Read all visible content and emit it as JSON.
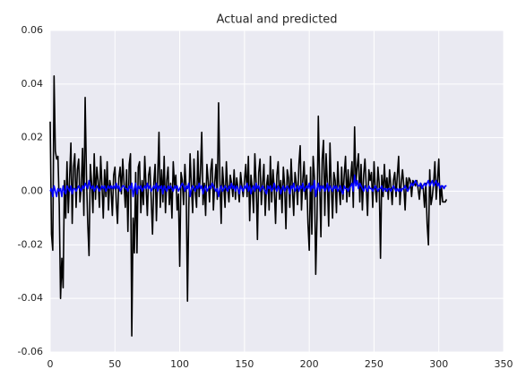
{
  "chart_data": {
    "type": "line",
    "title": "Actual and predicted",
    "x": [
      0,
      1,
      2,
      3,
      4,
      5,
      6,
      7,
      8,
      9,
      10,
      11,
      12,
      13,
      14,
      15,
      16,
      17,
      18,
      19,
      20,
      21,
      22,
      23,
      24,
      25,
      26,
      27,
      28,
      29,
      30,
      31,
      32,
      33,
      34,
      35,
      36,
      37,
      38,
      39,
      40,
      41,
      42,
      43,
      44,
      45,
      46,
      47,
      48,
      49,
      50,
      51,
      52,
      53,
      54,
      55,
      56,
      57,
      58,
      59,
      60,
      61,
      62,
      63,
      64,
      65,
      66,
      67,
      68,
      69,
      70,
      71,
      72,
      73,
      74,
      75,
      76,
      77,
      78,
      79,
      80,
      81,
      82,
      83,
      84,
      85,
      86,
      87,
      88,
      89,
      90,
      91,
      92,
      93,
      94,
      95,
      96,
      97,
      98,
      99,
      100,
      101,
      102,
      103,
      104,
      105,
      106,
      107,
      108,
      109,
      110,
      111,
      112,
      113,
      114,
      115,
      116,
      117,
      118,
      119,
      120,
      121,
      122,
      123,
      124,
      125,
      126,
      127,
      128,
      129,
      130,
      131,
      132,
      133,
      134,
      135,
      136,
      137,
      138,
      139,
      140,
      141,
      142,
      143,
      144,
      145,
      146,
      147,
      148,
      149,
      150,
      151,
      152,
      153,
      154,
      155,
      156,
      157,
      158,
      159,
      160,
      161,
      162,
      163,
      164,
      165,
      166,
      167,
      168,
      169,
      170,
      171,
      172,
      173,
      174,
      175,
      176,
      177,
      178,
      179,
      180,
      181,
      182,
      183,
      184,
      185,
      186,
      187,
      188,
      189,
      190,
      191,
      192,
      193,
      194,
      195,
      196,
      197,
      198,
      199,
      200,
      201,
      202,
      203,
      204,
      205,
      206,
      207,
      208,
      209,
      210,
      211,
      212,
      213,
      214,
      215,
      216,
      217,
      218,
      219,
      220,
      221,
      222,
      223,
      224,
      225,
      226,
      227,
      228,
      229,
      230,
      231,
      232,
      233,
      234,
      235,
      236,
      237,
      238,
      239,
      240,
      241,
      242,
      243,
      244,
      245,
      246,
      247,
      248,
      249,
      250,
      251,
      252,
      253,
      254,
      255,
      256,
      257,
      258,
      259,
      260,
      261,
      262,
      263,
      264,
      265,
      266,
      267,
      268,
      269,
      270,
      271,
      272,
      273,
      274,
      275,
      276,
      277,
      278,
      279,
      280,
      281,
      282,
      283,
      284,
      285,
      286,
      287,
      288,
      289,
      290,
      291,
      292,
      293,
      294,
      295,
      296,
      297,
      298,
      299,
      300,
      301,
      302,
      303,
      304,
      305,
      306
    ],
    "series": [
      {
        "color": "#000000",
        "values": [
          0.026,
          -0.016,
          -0.022,
          0.043,
          0.015,
          0.012,
          0.013,
          -0.005,
          -0.04,
          -0.025,
          -0.036,
          0.004,
          -0.01,
          0.011,
          -0.008,
          0.005,
          0.018,
          -0.012,
          0.009,
          0.014,
          -0.006,
          0.008,
          0.012,
          -0.004,
          0.002,
          0.016,
          -0.009,
          0.035,
          0.006,
          -0.012,
          -0.024,
          0.01,
          0.003,
          -0.008,
          0.014,
          -0.003,
          0.009,
          0.004,
          -0.006,
          0.013,
          0.002,
          -0.01,
          0.008,
          -0.002,
          0.011,
          -0.007,
          0.004,
          0.001,
          -0.009,
          0.006,
          0.009,
          -0.004,
          -0.012,
          0.005,
          0.009,
          -0.001,
          0.012,
          0.003,
          -0.006,
          0.008,
          -0.015,
          0.01,
          0.014,
          -0.054,
          -0.01,
          -0.023,
          0.007,
          -0.023,
          0.009,
          0.011,
          -0.008,
          0.004,
          -0.005,
          0.013,
          0.002,
          -0.009,
          0.006,
          0.009,
          -0.003,
          -0.016,
          0.003,
          0.01,
          -0.011,
          0.005,
          0.022,
          -0.006,
          0.008,
          -0.004,
          0.013,
          -0.008,
          0.004,
          0.009,
          -0.005,
          0.003,
          -0.01,
          0.011,
          0.002,
          0.006,
          -0.007,
          -0.001,
          -0.028,
          0.007,
          0.004,
          -0.005,
          0.01,
          0.001,
          -0.041,
          -0.006,
          0.014,
          0.002,
          -0.008,
          0.012,
          0.0,
          -0.006,
          0.015,
          -0.002,
          0.007,
          0.022,
          -0.005,
          0.003,
          -0.009,
          0.01,
          0.004,
          -0.004,
          0.008,
          0.012,
          -0.007,
          0.003,
          0.01,
          -0.003,
          0.033,
          0.005,
          -0.012,
          0.009,
          0.002,
          -0.006,
          0.011,
          0.001,
          -0.004,
          0.006,
          0.003,
          -0.002,
          0.008,
          -0.003,
          0.005,
          0.001,
          -0.004,
          0.007,
          0.002,
          -0.002,
          0.004,
          0.01,
          -0.002,
          0.013,
          -0.011,
          0.006,
          0.001,
          -0.008,
          0.014,
          0.003,
          -0.018,
          0.007,
          0.012,
          -0.005,
          0.003,
          0.01,
          -0.009,
          0.002,
          0.006,
          -0.007,
          0.013,
          -0.004,
          0.008,
          0.001,
          -0.012,
          0.006,
          0.011,
          -0.003,
          0.004,
          -0.008,
          0.009,
          0.002,
          -0.014,
          0.008,
          0.005,
          -0.006,
          0.012,
          0.001,
          -0.009,
          0.007,
          0.003,
          -0.005,
          0.01,
          0.017,
          -0.007,
          0.004,
          0.011,
          -0.003,
          0.006,
          -0.012,
          -0.022,
          0.009,
          -0.016,
          0.013,
          0.005,
          -0.031,
          -0.01,
          0.028,
          0.004,
          -0.017,
          0.012,
          0.019,
          -0.009,
          0.014,
          0.003,
          -0.013,
          0.018,
          0.002,
          -0.01,
          0.007,
          0.004,
          -0.008,
          0.011,
          0.001,
          -0.005,
          0.009,
          -0.003,
          0.006,
          0.013,
          -0.004,
          0.008,
          -0.002,
          0.005,
          0.011,
          -0.006,
          0.024,
          0.003,
          0.009,
          0.014,
          -0.004,
          0.01,
          -0.007,
          0.006,
          0.012,
          0.002,
          -0.009,
          0.008,
          0.004,
          0.007,
          -0.006,
          0.011,
          0.001,
          -0.004,
          0.009,
          0.003,
          -0.025,
          0.006,
          -0.002,
          0.01,
          0.0,
          0.005,
          -0.003,
          0.008,
          0.002,
          -0.005,
          0.004,
          0.007,
          -0.002,
          0.006,
          0.013,
          -0.005,
          0.003,
          0.008,
          0.002,
          -0.007,
          0.005,
          0.001,
          0.005,
          0.004,
          -0.002,
          0.004,
          0.003,
          0.002,
          0.004,
          0.001,
          -0.003,
          0.003,
          0.002,
          0.001,
          -0.006,
          0.003,
          -0.012,
          -0.02,
          0.008,
          -0.005,
          -0.002,
          0.003,
          0.011,
          -0.003,
          0.004,
          0.012,
          -0.005,
          0.002,
          -0.004,
          -0.004,
          -0.004,
          -0.003
        ]
      },
      {
        "color": "#0000ff",
        "values": [
          0.0,
          0.001,
          -0.002,
          0.002,
          0.0,
          -0.002,
          0.001,
          0.0,
          0.001,
          -0.002,
          0.002,
          0.0,
          -0.001,
          0.002,
          0.001,
          0.0,
          0.002,
          -0.001,
          0.001,
          0.001,
          0.0,
          0.001,
          0.002,
          0.001,
          0.0,
          0.002,
          0.001,
          0.003,
          0.002,
          0.001,
          0.004,
          0.002,
          0.001,
          0.002,
          0.0,
          0.001,
          0.002,
          0.001,
          0.0,
          0.001,
          0.002,
          0.001,
          0.002,
          0.0,
          0.001,
          0.002,
          0.001,
          0.002,
          0.001,
          0.002,
          0.001,
          0.003,
          0.001,
          0.002,
          0.0,
          0.001,
          0.002,
          0.002,
          0.001,
          0.001,
          0.0,
          0.002,
          0.001,
          0.003,
          -0.002,
          0.001,
          0.003,
          -0.001,
          0.002,
          0.001,
          0.002,
          0.0,
          0.001,
          0.002,
          0.001,
          0.003,
          0.001,
          0.002,
          0.0,
          0.001,
          0.002,
          0.001,
          0.003,
          0.0,
          0.002,
          0.001,
          0.002,
          -0.001,
          0.002,
          0.001,
          0.0,
          0.002,
          0.001,
          0.002,
          0.001,
          0.0,
          0.002,
          0.001,
          0.002,
          0.0,
          0.001,
          0.002,
          0.003,
          0.002,
          0.0,
          0.002,
          0.001,
          0.003,
          -0.002,
          0.001,
          0.002,
          0.001,
          0.0,
          0.002,
          0.001,
          0.003,
          0.001,
          0.002,
          -0.001,
          0.001,
          0.002,
          0.0,
          0.001,
          0.002,
          0.001,
          0.003,
          0.002,
          0.001,
          0.0,
          0.001,
          -0.002,
          0.001,
          0.002,
          0.0,
          0.001,
          0.002,
          0.001,
          0.0,
          0.002,
          0.001,
          0.003,
          0.001,
          0.002,
          0.0,
          0.002,
          0.001,
          -0.001,
          0.002,
          0.001,
          0.0,
          0.002,
          0.001,
          0.003,
          0.0,
          0.002,
          -0.001,
          0.001,
          0.002,
          0.0,
          0.003,
          0.001,
          0.002,
          0.0,
          0.001,
          0.002,
          0.001,
          0.0,
          -0.001,
          0.002,
          0.001,
          0.002,
          0.0,
          0.001,
          0.003,
          0.001,
          0.0,
          0.002,
          0.001,
          -0.001,
          0.001,
          0.002,
          0.0,
          0.001,
          0.002,
          0.001,
          -0.001,
          0.002,
          0.001,
          0.003,
          0.0,
          0.001,
          0.002,
          0.0,
          0.002,
          0.001,
          0.003,
          0.0,
          0.001,
          0.002,
          0.001,
          0.003,
          0.0,
          0.002,
          0.001,
          0.004,
          -0.002,
          0.001,
          0.003,
          0.0,
          0.002,
          0.001,
          0.002,
          0.0,
          0.001,
          0.003,
          0.0,
          0.002,
          0.001,
          0.0,
          0.002,
          0.001,
          0.002,
          0.0,
          0.001,
          0.002,
          0.0,
          -0.001,
          0.002,
          0.001,
          0.001,
          0.0,
          0.001,
          0.002,
          0.003,
          0.0,
          0.006,
          0.002,
          0.004,
          0.001,
          0.003,
          0.002,
          0.001,
          0.0,
          0.002,
          0.001,
          0.0,
          0.002,
          0.001,
          0.001,
          0.0,
          0.001,
          0.002,
          0.001,
          0.0,
          0.001,
          0.001,
          0.002,
          0.0,
          0.001,
          0.001,
          0.0,
          0.001,
          0.001,
          0.0,
          0.001,
          0.002,
          0.001,
          0.0,
          0.001,
          0.0,
          0.001,
          0.0,
          0.001,
          0.001,
          0.002,
          0.001,
          0.0,
          0.001,
          0.002,
          0.003,
          0.002,
          0.003,
          0.004,
          0.003,
          0.002,
          0.002,
          0.003,
          0.001,
          0.002,
          0.003,
          0.002,
          0.003,
          0.004,
          0.002,
          0.003,
          0.004,
          0.002,
          0.003,
          0.004,
          0.002,
          0.003,
          0.001,
          0.002,
          0.002,
          0.001,
          0.002,
          0.002
        ]
      }
    ],
    "xlim": [
      0,
      350
    ],
    "xticks": [
      0,
      50,
      100,
      150,
      200,
      250,
      300,
      350
    ],
    "ylim": [
      -0.06,
      0.06
    ],
    "yticks": [
      -0.06,
      -0.04,
      -0.02,
      {
        "value": 0,
        "label": "0.00"
      },
      0.02,
      0.04,
      0.06
    ],
    "grid": true
  }
}
